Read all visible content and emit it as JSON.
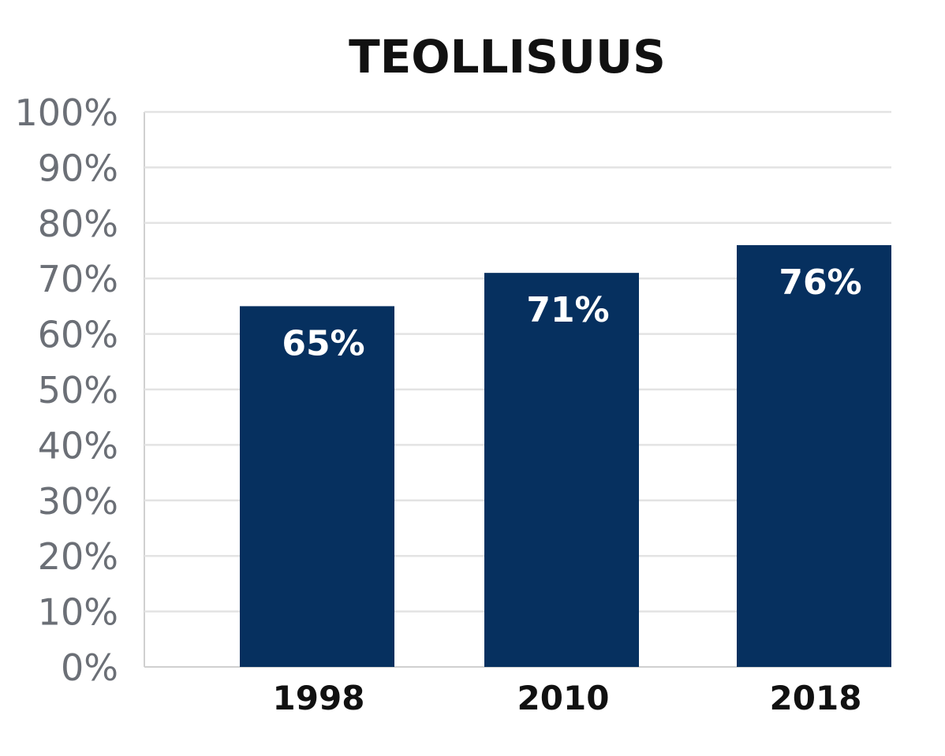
{
  "chart_data": {
    "type": "bar",
    "title": "TEOLLISUUS",
    "categories": [
      "1998",
      "2010",
      "2018"
    ],
    "values": [
      65,
      71,
      76
    ],
    "value_labels": [
      "65%",
      "71%",
      "76%"
    ],
    "ylim": [
      0,
      100
    ],
    "y_ticks": [
      0,
      10,
      20,
      30,
      40,
      50,
      60,
      70,
      80,
      90,
      100
    ],
    "y_tick_labels": [
      "0%",
      "10%",
      "20%",
      "30%",
      "40%",
      "50%",
      "60%",
      "70%",
      "80%",
      "90%",
      "100%"
    ],
    "xlabel": "",
    "ylabel": "",
    "grid": true,
    "legend": "none"
  },
  "colors": {
    "bar": "#06305f",
    "bar_label": "#ffffff",
    "grid": "#e3e3e3",
    "axis": "#d0d0d0",
    "tick_label": "#6b6f76",
    "category_label": "#111111",
    "title": "#111111"
  }
}
